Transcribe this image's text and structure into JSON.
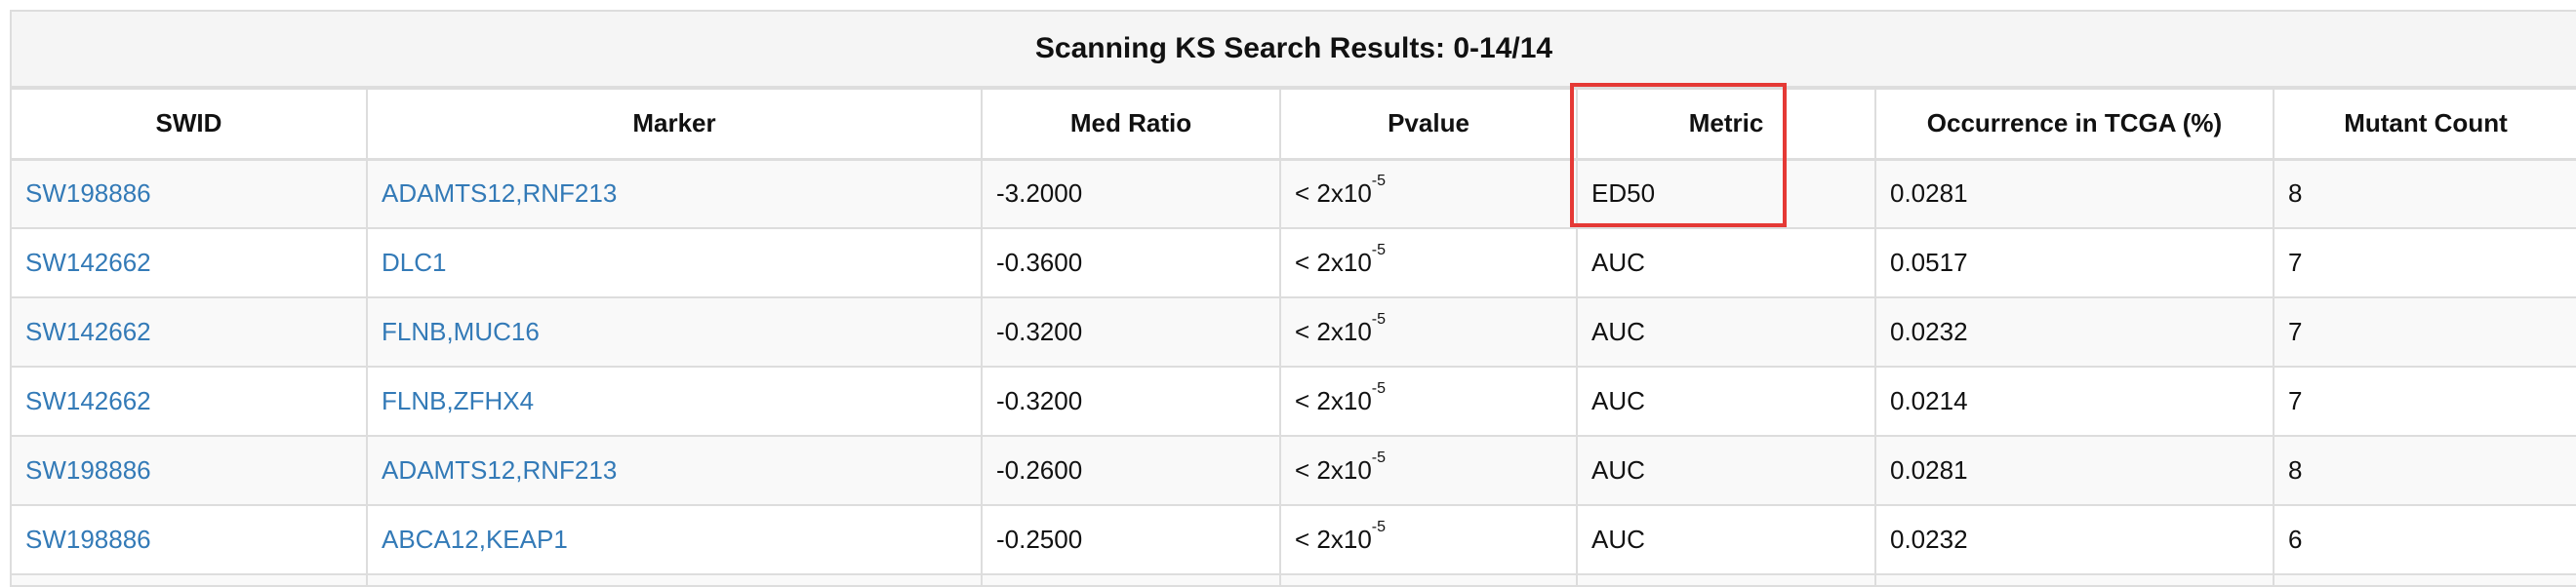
{
  "title": "Scanning KS Search Results: 0-14/14",
  "columns": [
    "SWID",
    "Marker",
    "Med Ratio",
    "Pvalue",
    "Metric",
    "Occurrence in TCGA (%)",
    "Mutant Count"
  ],
  "pvalue_prefix": "< 2x10",
  "pvalue_exponent": "-5",
  "rows": [
    {
      "swid": "SW198886",
      "marker": "ADAMTS12,RNF213",
      "med_ratio": "-3.2000",
      "metric": "ED50",
      "occurrence": "0.0281",
      "mutant_count": "8"
    },
    {
      "swid": "SW142662",
      "marker": "DLC1",
      "med_ratio": "-0.3600",
      "metric": "AUC",
      "occurrence": "0.0517",
      "mutant_count": "7"
    },
    {
      "swid": "SW142662",
      "marker": "FLNB,MUC16",
      "med_ratio": "-0.3200",
      "metric": "AUC",
      "occurrence": "0.0232",
      "mutant_count": "7"
    },
    {
      "swid": "SW142662",
      "marker": "FLNB,ZFHX4",
      "med_ratio": "-0.3200",
      "metric": "AUC",
      "occurrence": "0.0214",
      "mutant_count": "7"
    },
    {
      "swid": "SW198886",
      "marker": "ADAMTS12,RNF213",
      "med_ratio": "-0.2600",
      "metric": "AUC",
      "occurrence": "0.0281",
      "mutant_count": "8"
    },
    {
      "swid": "SW198886",
      "marker": "ABCA12,KEAP1",
      "med_ratio": "-0.2500",
      "metric": "AUC",
      "occurrence": "0.0232",
      "mutant_count": "6"
    }
  ],
  "colors": {
    "link": "#337ab7",
    "highlight": "#e53935",
    "border": "#dddddd",
    "title_bg": "#f5f5f5",
    "stripe": "#f9f9f9"
  }
}
